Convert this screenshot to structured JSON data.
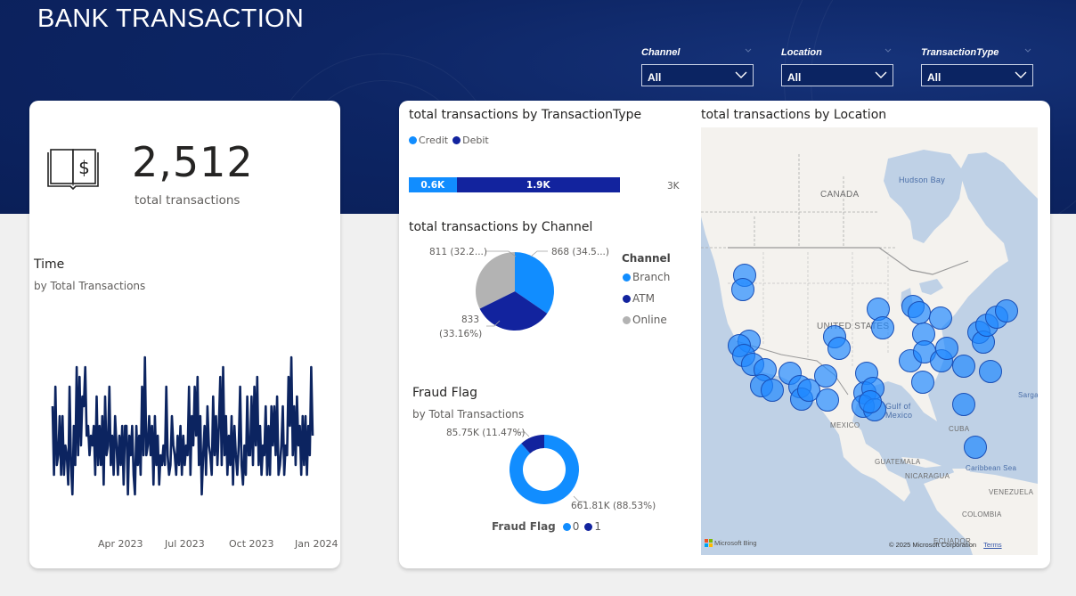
{
  "header": {
    "title": "BANK TRANSACTION"
  },
  "filters": [
    {
      "label": "Channel",
      "value": "All"
    },
    {
      "label": "Location",
      "value": "All"
    },
    {
      "label": "TransactionType",
      "value": "All"
    }
  ],
  "kpi": {
    "icon": "ledger-dollar-icon",
    "value": "2,512",
    "label": "total transactions"
  },
  "time_chart": {
    "title": "Time",
    "subtitle": "by Total Transactions",
    "line_color": "#0c2460",
    "x_ticks": [
      "Apr 2023",
      "Jul 2023",
      "Oct 2023",
      "Jan 2024"
    ]
  },
  "transaction_type_chart": {
    "title": "total transactions by TransactionType",
    "legend": [
      {
        "label": "Credit",
        "color": "#118dff"
      },
      {
        "label": "Debit",
        "color": "#12239e"
      }
    ],
    "axis_max_label": "3K"
  },
  "channel_chart": {
    "title": "total transactions by Channel",
    "legend_title": "Channel",
    "legend": [
      {
        "label": "Branch",
        "color": "#118dff"
      },
      {
        "label": "ATM",
        "color": "#12239e"
      },
      {
        "label": "Online",
        "color": "#b3b3b3"
      }
    ],
    "labels": {
      "branch": "868 (34.5...)",
      "online": "811 (32.2...)",
      "atm_value": "833",
      "atm_pct": "(33.16%)"
    }
  },
  "fraud_chart": {
    "title": "Fraud Flag",
    "subtitle": "by Total Transactions",
    "legend_title": "Fraud Flag",
    "legend": [
      {
        "label": "0",
        "color": "#118dff"
      },
      {
        "label": "1",
        "color": "#12239e"
      }
    ],
    "labels": {
      "flag_1": "85.75K (11.47%)",
      "flag_0": "661.81K (88.53%)"
    }
  },
  "location_map": {
    "title": "total transactions by Location",
    "bubble_color": "#1e88ff",
    "labels": {
      "canada": "CANADA",
      "hudson_bay": "Hudson Bay",
      "united_states": "UNITED STATES",
      "gulf": "Gulf of",
      "gulf2": "Mexico",
      "mexico": "MEXICO",
      "cuba": "CUBA",
      "guatemala": "GUATEMALA",
      "nicaragua": "NICARAGUA",
      "caribbean": "Caribbean Sea",
      "venezuela": "VENEZUELA",
      "colombia": "COLOMBIA",
      "ecuador": "ECUADOR",
      "sargasso": "Sarga"
    },
    "attribution": {
      "provider": "Microsoft Bing",
      "copyright": "© 2025 Microsoft Corporation",
      "terms": "Terms"
    }
  },
  "chart_data": [
    {
      "type": "bar",
      "title": "total transactions by TransactionType",
      "orientation": "horizontal-stacked",
      "categories": [
        "Credit",
        "Debit"
      ],
      "values": [
        568,
        1944
      ],
      "data_labels": [
        "0.6K",
        "1.9K"
      ],
      "xlim": [
        0,
        3000
      ],
      "x_tick_labels": [
        "3K"
      ]
    },
    {
      "type": "pie",
      "title": "total transactions by Channel",
      "categories": [
        "Branch",
        "ATM",
        "Online"
      ],
      "values": [
        868,
        833,
        811
      ],
      "percentages": [
        34.55,
        33.16,
        32.29
      ],
      "colors": [
        "#118dff",
        "#12239e",
        "#b3b3b3"
      ],
      "legend": "right"
    },
    {
      "type": "pie",
      "subtype": "donut",
      "title": "Fraud Flag",
      "subtitle": "by Total Transactions",
      "categories": [
        "0",
        "1"
      ],
      "values": [
        661810,
        85750
      ],
      "percentages": [
        88.53,
        11.47
      ],
      "colors": [
        "#118dff",
        "#12239e"
      ],
      "legend": "bottom"
    },
    {
      "type": "line",
      "title": "Time",
      "subtitle": "by Total Transactions",
      "x_range": [
        "2023-01-02",
        "2024-01-02"
      ],
      "x_tick_labels": [
        "Apr 2023",
        "Jul 2023",
        "Oct 2023",
        "Jan 2024"
      ],
      "ylim": [
        0,
        20
      ],
      "grid": false,
      "values": [
        10,
        3,
        12,
        4,
        5,
        9,
        3,
        9,
        3,
        6,
        5,
        2,
        12,
        4,
        1,
        8,
        4,
        14,
        5,
        13,
        6,
        11,
        10,
        14,
        7,
        8,
        5,
        7,
        6,
        8,
        3,
        11,
        4,
        8,
        4,
        9,
        2,
        11,
        5,
        6,
        12,
        4,
        7,
        3,
        9,
        6,
        3,
        7,
        4,
        8,
        2,
        8,
        8,
        1,
        7,
        5,
        8,
        3,
        1,
        8,
        4,
        7,
        3,
        12,
        5,
        15,
        5,
        6,
        9,
        5,
        8,
        2,
        9,
        4,
        7,
        2,
        5,
        4,
        6,
        4,
        12,
        5,
        3,
        4,
        9,
        6,
        5,
        3,
        7,
        4,
        8,
        3,
        7,
        4,
        6,
        5,
        12,
        3,
        9,
        6,
        12,
        7,
        13,
        4,
        9,
        1,
        5,
        8,
        3,
        10,
        6,
        5,
        3,
        11,
        5,
        9,
        4,
        8,
        13,
        4,
        14,
        5,
        9,
        3,
        7,
        4,
        9,
        2,
        8,
        5,
        3,
        6,
        12,
        4,
        2,
        6,
        3,
        11,
        5,
        5,
        11,
        4,
        12,
        6,
        13,
        4,
        8,
        3,
        6,
        5,
        10,
        3,
        8,
        3,
        10,
        6,
        10,
        5,
        11,
        3,
        4,
        6,
        10,
        3,
        6,
        5,
        13,
        8,
        15,
        5,
        10,
        4,
        11,
        6,
        8,
        3,
        9,
        4,
        9,
        3,
        8,
        5,
        14,
        7
      ],
      "series_note": "approximate daily totals estimated from line shape"
    },
    {
      "type": "scatter",
      "subtype": "bubble-map",
      "title": "total transactions by Location",
      "region": "United States",
      "bubble_count": 43
    }
  ]
}
